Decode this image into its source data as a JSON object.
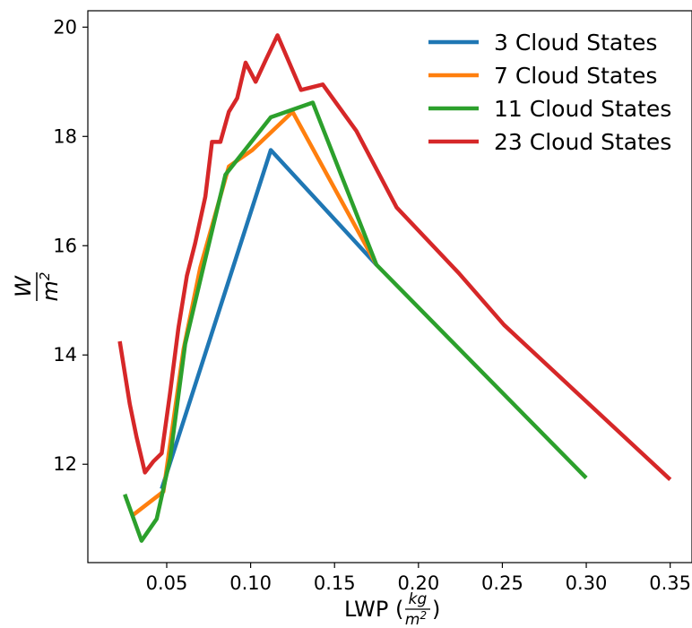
{
  "chart_data": {
    "type": "line",
    "title": "",
    "xlabel": "LWP (kg/m²)",
    "ylabel": "W/m²",
    "xlim": [
      0.003,
      0.363
    ],
    "ylim": [
      10.2,
      20.3
    ],
    "xticks": [
      0.05,
      0.1,
      0.15,
      0.2,
      0.25,
      0.3,
      0.35
    ],
    "xtick_labels": [
      "0.05",
      "0.10",
      "0.15",
      "0.20",
      "0.25",
      "0.30",
      "0.35"
    ],
    "yticks": [
      12,
      14,
      16,
      18,
      20
    ],
    "ytick_labels": [
      "12",
      "14",
      "16",
      "18",
      "20"
    ],
    "grid": false,
    "legend_position": "top-right",
    "series": [
      {
        "name": "3 Cloud States",
        "color": "#1f77b4",
        "x": [
          0.047,
          0.112,
          0.175
        ],
        "y": [
          11.55,
          17.75,
          15.65
        ]
      },
      {
        "name": "7 Cloud States",
        "color": "#ff7f0e",
        "x": [
          0.029,
          0.048,
          0.06,
          0.07,
          0.087,
          0.101,
          0.125,
          0.175
        ],
        "y": [
          11.05,
          11.5,
          14.1,
          15.6,
          17.45,
          17.75,
          18.45,
          15.65
        ]
      },
      {
        "name": "11 Cloud States",
        "color": "#2ca02c",
        "x": [
          0.025,
          0.035,
          0.044,
          0.052,
          0.061,
          0.071,
          0.085,
          0.112,
          0.137,
          0.175,
          0.3
        ],
        "y": [
          11.45,
          10.6,
          11.0,
          12.1,
          14.2,
          15.5,
          17.3,
          18.35,
          18.62,
          15.65,
          11.75
        ]
      },
      {
        "name": "23 Cloud States",
        "color": "#d62728",
        "x": [
          0.022,
          0.028,
          0.032,
          0.037,
          0.042,
          0.047,
          0.052,
          0.057,
          0.062,
          0.067,
          0.073,
          0.077,
          0.082,
          0.087,
          0.092,
          0.097,
          0.103,
          0.109,
          0.116,
          0.123,
          0.13,
          0.143,
          0.163,
          0.187,
          0.224,
          0.251,
          0.3,
          0.35
        ],
        "y": [
          14.25,
          13.1,
          12.5,
          11.85,
          12.05,
          12.2,
          13.3,
          14.5,
          15.45,
          16.05,
          16.9,
          17.9,
          17.9,
          18.45,
          18.7,
          19.35,
          19.0,
          19.4,
          19.85,
          19.35,
          18.85,
          18.95,
          18.1,
          16.7,
          15.5,
          14.55,
          13.15,
          11.72
        ]
      }
    ]
  }
}
